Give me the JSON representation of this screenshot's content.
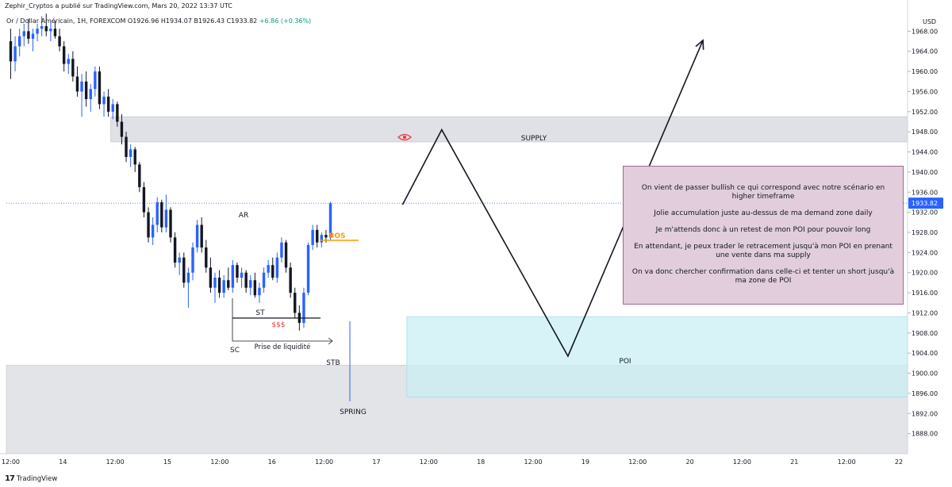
{
  "header": {
    "published": "Zephir_Cryptos a publié sur TradingView.com, Mars 20, 2022 13:37 UTC"
  },
  "symbol": {
    "name": "Or / Dollar Américain, 1H, FOREXCOM",
    "ohlc": "O1926.96 H1934.07 B1926.43 C1933.82",
    "change": "+6.86 (+0.36%)"
  },
  "price_axis": {
    "currency": "USD",
    "last_price": "1933.82"
  },
  "brand": {
    "name": "TradingView"
  },
  "colors": {
    "up": "#2962ff",
    "down": "#131722",
    "supply_zone": "#e0e1e6",
    "poi_zone": "#c9eff4",
    "lower_zone": "#e3e4e8",
    "infobox": "#e1cddc",
    "bos": "#ff9800",
    "liquidity": "#f23645",
    "last_price": "#2962ff"
  },
  "annotations": {
    "supply": "SUPPLY",
    "poi": "POI",
    "ar": "AR",
    "bos": "BOS",
    "st": "ST",
    "liquidity": "$$$",
    "sc": "SC",
    "liquidity_grab": "Prise de liquidité",
    "stb": "STB",
    "spring": "SPRING",
    "eye_icon": "eye-icon"
  },
  "infobox": {
    "lines": [
      "On vient de passer bullish ce qui correspond avec notre scénario en higher timeframe",
      "Jolie accumulation juste au-dessus de ma demand zone daily",
      "Je m'attends donc à un retest de mon POI pour pouvoir long",
      "En attendant, je peux trader le retracement jusqu'à mon POI en prenant une vente dans ma supply",
      "On va donc chercher confirmation dans celle-ci et tenter un short jusqu'à ma zone de POI"
    ]
  },
  "chart_data": {
    "type": "candlestick",
    "title": "Or / Dollar Américain, 1H, FOREXCOM",
    "ylabel": "USD",
    "ylim": [
      1884,
      1972
    ],
    "y_ticks": [
      1888,
      1892,
      1896,
      1900,
      1904,
      1908,
      1912,
      1916,
      1920,
      1924,
      1928,
      1932,
      1936,
      1940,
      1944,
      1948,
      1952,
      1956,
      1960,
      1964,
      1968
    ],
    "x_ticks": [
      "12:00",
      "14",
      "12:00",
      "15",
      "12:00",
      "16",
      "12:00",
      "17",
      "12:00",
      "18",
      "12:00",
      "19",
      "12:00",
      "20",
      "12:00",
      "21",
      "12:00",
      "22"
    ],
    "x_tick_hours": [
      -12,
      0,
      12,
      24,
      36,
      48,
      60,
      72,
      84,
      96,
      108,
      120,
      132,
      144,
      156,
      168,
      180,
      192
    ],
    "x_range_hours": [
      -13,
      194
    ],
    "last_price": 1933.82,
    "zones": [
      {
        "name": "SUPPLY",
        "from_hour": 11,
        "to_hour": 194,
        "low": 1946.0,
        "high": 1951.0
      },
      {
        "name": "POI",
        "from_hour": 79,
        "to_hour": 194,
        "low": 1895.3,
        "high": 1911.2
      },
      {
        "name": "lower",
        "from_hour": -13,
        "to_hour": 194,
        "low": 1884.0,
        "high": 1901.6
      }
    ],
    "projection": [
      {
        "hour": 78,
        "price": 1933.5
      },
      {
        "hour": 87,
        "price": 1948.4
      },
      {
        "hour": 116,
        "price": 1903.4
      },
      {
        "hour": 147,
        "price": 1966.2
      }
    ],
    "candles": [
      [
        1966.0,
        1968.5,
        1958.5,
        1962.0
      ],
      [
        1962.0,
        1967.0,
        1960.0,
        1965.0
      ],
      [
        1965.0,
        1968.5,
        1963.0,
        1967.0
      ],
      [
        1967.0,
        1969.5,
        1965.0,
        1968.0
      ],
      [
        1968.0,
        1970.5,
        1965.5,
        1966.5
      ],
      [
        1966.5,
        1968.5,
        1964.0,
        1967.5
      ],
      [
        1967.5,
        1969.5,
        1966.0,
        1968.5
      ],
      [
        1968.5,
        1971.0,
        1967.0,
        1969.0
      ],
      [
        1969.0,
        1971.5,
        1967.0,
        1968.0
      ],
      [
        1968.0,
        1970.0,
        1966.0,
        1968.5
      ],
      [
        1968.5,
        1970.0,
        1966.5,
        1967.0
      ],
      [
        1967.0,
        1968.5,
        1964.0,
        1965.0
      ],
      [
        1965.0,
        1966.0,
        1960.0,
        1961.5
      ],
      [
        1961.5,
        1963.5,
        1959.5,
        1962.5
      ],
      [
        1962.5,
        1964.0,
        1958.0,
        1959.0
      ],
      [
        1959.0,
        1961.0,
        1955.0,
        1956.0
      ],
      [
        1956.0,
        1959.5,
        1951.0,
        1958.0
      ],
      [
        1958.0,
        1960.0,
        1953.0,
        1954.5
      ],
      [
        1954.5,
        1957.5,
        1952.0,
        1956.5
      ],
      [
        1956.5,
        1961.0,
        1955.0,
        1960.0
      ],
      [
        1960.0,
        1961.0,
        1952.5,
        1953.5
      ],
      [
        1953.5,
        1956.0,
        1951.0,
        1955.0
      ],
      [
        1955.0,
        1956.5,
        1951.0,
        1952.0
      ],
      [
        1952.0,
        1954.5,
        1950.5,
        1953.5
      ],
      [
        1953.5,
        1954.0,
        1949.0,
        1950.0
      ],
      [
        1950.0,
        1951.5,
        1945.5,
        1947.0
      ],
      [
        1947.0,
        1948.0,
        1942.0,
        1943.0
      ],
      [
        1943.0,
        1945.5,
        1941.0,
        1944.5
      ],
      [
        1944.5,
        1945.0,
        1940.0,
        1941.5
      ],
      [
        1941.5,
        1942.0,
        1936.0,
        1937.0
      ],
      [
        1937.0,
        1938.0,
        1931.0,
        1932.0
      ],
      [
        1932.0,
        1933.0,
        1926.0,
        1927.0
      ],
      [
        1927.0,
        1931.0,
        1925.5,
        1929.5
      ],
      [
        1929.5,
        1935.0,
        1928.0,
        1934.0
      ],
      [
        1934.0,
        1934.5,
        1928.0,
        1929.0
      ],
      [
        1929.0,
        1935.5,
        1928.0,
        1932.5
      ],
      [
        1932.5,
        1933.0,
        1926.0,
        1927.0
      ],
      [
        1927.0,
        1928.0,
        1921.0,
        1922.0
      ],
      [
        1922.0,
        1924.0,
        1919.5,
        1923.0
      ],
      [
        1923.0,
        1924.0,
        1917.0,
        1918.0
      ],
      [
        1918.0,
        1921.0,
        1913.0,
        1920.0
      ],
      [
        1920.0,
        1926.0,
        1918.5,
        1925.0
      ],
      [
        1925.0,
        1930.5,
        1924.0,
        1929.5
      ],
      [
        1929.5,
        1931.0,
        1924.0,
        1925.0
      ],
      [
        1925.0,
        1926.5,
        1920.0,
        1921.0
      ],
      [
        1921.0,
        1923.0,
        1916.0,
        1917.0
      ],
      [
        1917.0,
        1920.0,
        1914.0,
        1919.0
      ],
      [
        1919.0,
        1920.5,
        1915.0,
        1916.0
      ],
      [
        1916.0,
        1919.5,
        1915.0,
        1918.5
      ],
      [
        1918.5,
        1921.0,
        1916.5,
        1917.0
      ],
      [
        1917.0,
        1922.5,
        1916.0,
        1921.5
      ],
      [
        1921.5,
        1922.0,
        1918.0,
        1919.0
      ],
      [
        1919.0,
        1921.0,
        1917.0,
        1920.0
      ],
      [
        1920.0,
        1920.5,
        1916.0,
        1917.0
      ],
      [
        1917.0,
        1919.5,
        1915.5,
        1918.5
      ],
      [
        1918.5,
        1920.0,
        1915.0,
        1915.5
      ],
      [
        1915.5,
        1918.0,
        1914.0,
        1917.0
      ],
      [
        1917.0,
        1921.0,
        1916.0,
        1920.0
      ],
      [
        1920.0,
        1922.5,
        1919.0,
        1921.5
      ],
      [
        1921.5,
        1923.0,
        1918.5,
        1919.0
      ],
      [
        1919.0,
        1924.0,
        1918.0,
        1923.0
      ],
      [
        1923.0,
        1927.0,
        1922.0,
        1926.0
      ],
      [
        1926.0,
        1926.5,
        1920.0,
        1921.0
      ],
      [
        1921.0,
        1922.0,
        1915.0,
        1916.0
      ],
      [
        1916.0,
        1917.0,
        1911.0,
        1912.0
      ],
      [
        1912.0,
        1913.5,
        1908.5,
        1910.0
      ],
      [
        1910.0,
        1917.0,
        1909.0,
        1916.0
      ],
      [
        1916.0,
        1926.0,
        1915.5,
        1925.5
      ],
      [
        1925.5,
        1929.5,
        1924.5,
        1928.5
      ],
      [
        1928.5,
        1929.5,
        1925.0,
        1926.0
      ],
      [
        1926.0,
        1928.0,
        1925.0,
        1927.5
      ],
      [
        1927.5,
        1928.5,
        1926.0,
        1927.0
      ],
      [
        1926.96,
        1934.07,
        1926.43,
        1933.82
      ]
    ]
  }
}
